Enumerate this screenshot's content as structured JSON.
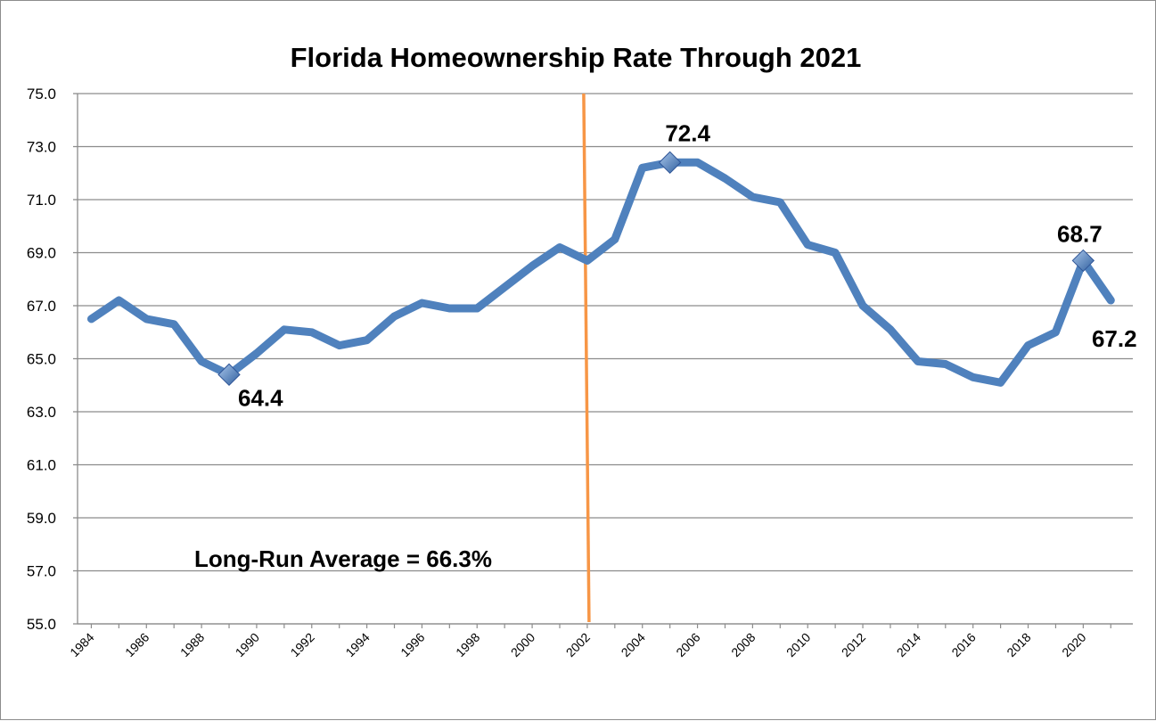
{
  "chart_data": {
    "type": "line",
    "title": "Florida Homeownership Rate Through 2021",
    "xlabel": "",
    "ylabel": "",
    "ylim": [
      55.0,
      75.0
    ],
    "yticks": [
      "55.0",
      "57.0",
      "59.0",
      "61.0",
      "63.0",
      "65.0",
      "67.0",
      "69.0",
      "71.0",
      "73.0",
      "75.0"
    ],
    "xticks": [
      "1984",
      "1986",
      "1988",
      "1990",
      "1992",
      "1994",
      "1996",
      "1998",
      "2000",
      "2002",
      "2004",
      "2006",
      "2008",
      "2010",
      "2012",
      "2014",
      "2016",
      "2018",
      "2020"
    ],
    "grid": true,
    "series": [
      {
        "name": "Florida Homeownership Rate",
        "color": "#4f81bd",
        "x": [
          1984,
          1985,
          1986,
          1987,
          1988,
          1989,
          1990,
          1991,
          1992,
          1993,
          1994,
          1995,
          1996,
          1997,
          1998,
          1999,
          2000,
          2001,
          2002,
          2003,
          2004,
          2005,
          2006,
          2007,
          2008,
          2009,
          2010,
          2011,
          2012,
          2013,
          2014,
          2015,
          2016,
          2017,
          2018,
          2019,
          2020,
          2021
        ],
        "values": [
          66.5,
          67.2,
          66.5,
          66.3,
          64.9,
          64.4,
          65.2,
          66.1,
          66.0,
          65.5,
          65.7,
          66.6,
          67.1,
          66.9,
          66.9,
          67.7,
          68.5,
          69.2,
          68.7,
          69.5,
          72.2,
          72.4,
          72.4,
          71.8,
          71.1,
          70.9,
          69.3,
          69.0,
          67.0,
          66.1,
          64.9,
          64.8,
          64.3,
          64.1,
          65.5,
          66.0,
          68.7,
          67.2
        ]
      }
    ],
    "data_labels": [
      {
        "year": 1989,
        "value": 64.4,
        "text": "64.4",
        "marker": true
      },
      {
        "year": 2005,
        "value": 72.4,
        "text": "72.4",
        "marker": true
      },
      {
        "year": 2020,
        "value": 68.7,
        "text": "68.7",
        "marker": true
      },
      {
        "year": 2021,
        "value": 67.2,
        "text": "67.2",
        "marker": false
      }
    ],
    "reference_line": {
      "year": 2002,
      "color": "#f79646"
    },
    "annotation": "Long-Run Average = 66.3%"
  }
}
